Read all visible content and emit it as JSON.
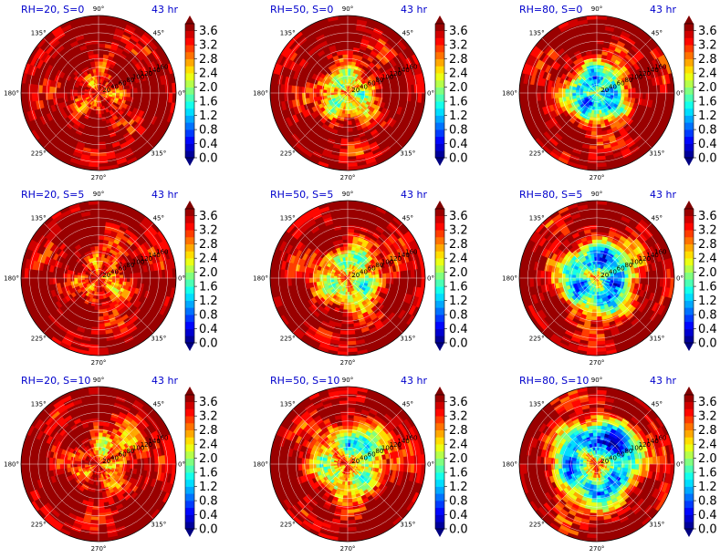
{
  "figure": {
    "time_label": "43 hr"
  },
  "panels": [
    {
      "title": "RH=20, S=0",
      "rh": 20,
      "s": 0
    },
    {
      "title": "RH=50, S=0",
      "rh": 50,
      "s": 0
    },
    {
      "title": "RH=80, S=0",
      "rh": 80,
      "s": 0
    },
    {
      "title": "RH=20, S=5",
      "rh": 20,
      "s": 5
    },
    {
      "title": "RH=50, S=5",
      "rh": 50,
      "s": 5
    },
    {
      "title": "RH=80, S=5",
      "rh": 80,
      "s": 5
    },
    {
      "title": "RH=20, S=10",
      "rh": 20,
      "s": 10
    },
    {
      "title": "RH=50, S=10",
      "rh": 50,
      "s": 10
    },
    {
      "title": "RH=80, S=10",
      "rh": 80,
      "s": 10
    }
  ],
  "chart_data": {
    "type": "heatmap",
    "projection": "polar",
    "grid": true,
    "angle_ticks": [
      "0°",
      "45°",
      "90°",
      "135°",
      "180°",
      "225°",
      "270°",
      "315°"
    ],
    "radial_ticks": [
      "20",
      "40",
      "60",
      "80",
      "100",
      "120",
      "140",
      "160"
    ],
    "rmax": 180,
    "colorbar": {
      "ticks": [
        "0.0",
        "0.4",
        "0.8",
        "1.2",
        "1.6",
        "2.0",
        "2.4",
        "2.8",
        "3.2",
        "3.6"
      ],
      "levels": [
        0.0,
        0.2,
        0.4,
        0.6,
        0.8,
        1.0,
        1.2,
        1.4,
        1.6,
        1.8,
        2.0,
        2.2,
        2.4,
        2.6,
        2.8,
        3.0,
        3.2,
        3.4,
        3.6,
        3.8
      ],
      "vmin": 0.0,
      "vmax": 3.8,
      "extend": "both",
      "colormap": "jet"
    }
  }
}
